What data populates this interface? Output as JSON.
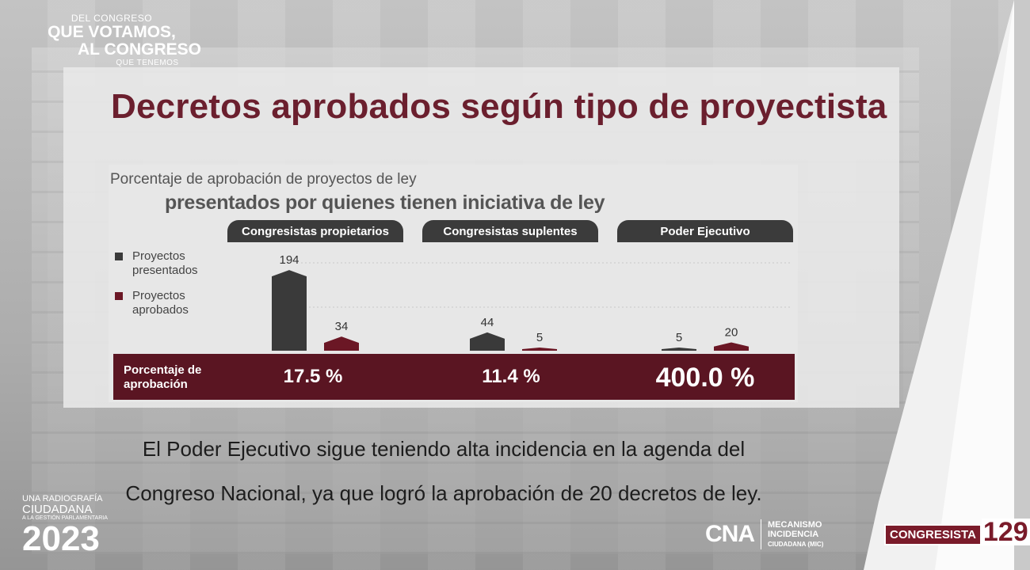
{
  "top_logo": {
    "line1": "DEL CONGRESO",
    "line2": "QUE VOTAMOS,",
    "line3": "AL CONGRESO",
    "line4": "QUE TENEMOS"
  },
  "title": "Decretos aprobados según tipo de proyectista",
  "chart_subtitle_1": "Porcentaje de aprobación de proyectos de ley",
  "chart_subtitle_2": "presentados por quienes tienen iniciativa de ley",
  "colors": {
    "presented": "#3a3a3a",
    "approved": "#6b1725",
    "band": "#5a1522",
    "title": "#6b1f2e"
  },
  "chart_data": {
    "type": "bar",
    "categories": [
      "Congresistas propietarios",
      "Congresistas suplentes",
      "Poder Ejecutivo"
    ],
    "series": [
      {
        "name": "Proyectos presentados",
        "values": [
          194,
          44,
          5
        ]
      },
      {
        "name": "Proyectos aprobados",
        "values": [
          34,
          5,
          20
        ]
      }
    ],
    "row_label": "Porcentaje de aprobación",
    "percentages": [
      "17.5 %",
      "11.4 %",
      "400.0 %"
    ],
    "legend_placement": "left",
    "ylim": [
      0,
      200
    ],
    "grid": false
  },
  "legend": {
    "presented": "Proyectos presentados",
    "approved": "Proyectos aprobados"
  },
  "band": {
    "label": "Porcentaje de aprobación",
    "values": [
      "17.5 %",
      "11.4 %",
      "400.0 %"
    ]
  },
  "caption": {
    "line1": "El Poder Ejecutivo sigue teniendo alta incidencia en la agenda del",
    "line2": "Congreso Nacional, ya que logró la aprobación de 20 decretos de ley."
  },
  "bottom_left_logo": {
    "line1": "UNA RADIOGRAFÍA",
    "line2": "CIUDADANA",
    "line3": "A LA GESTIÓN PARLAMENTARIA",
    "year": "2023"
  },
  "cna_logo": {
    "mark": "CNA",
    "line1": "MECANISMO",
    "line2": "INCIDENCIA",
    "line3": "CIUDADANA (MIC)"
  },
  "congresista_logo": {
    "name": "CONGRESISTA",
    "number": "129"
  }
}
